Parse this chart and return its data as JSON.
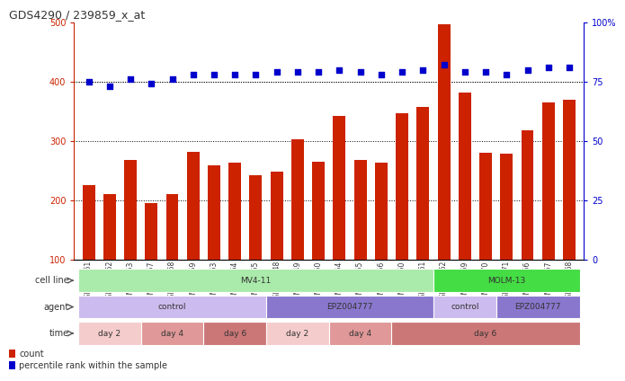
{
  "title": "GDS4290 / 239859_x_at",
  "samples": [
    "GSM739151",
    "GSM739152",
    "GSM739153",
    "GSM739157",
    "GSM739158",
    "GSM739159",
    "GSM739163",
    "GSM739164",
    "GSM739165",
    "GSM739148",
    "GSM739149",
    "GSM739150",
    "GSM739154",
    "GSM739155",
    "GSM739156",
    "GSM739160",
    "GSM739161",
    "GSM739162",
    "GSM739169",
    "GSM739170",
    "GSM739171",
    "GSM739166",
    "GSM739167",
    "GSM739168"
  ],
  "counts": [
    225,
    210,
    268,
    195,
    210,
    282,
    258,
    263,
    242,
    248,
    302,
    265,
    342,
    268,
    263,
    347,
    357,
    497,
    382,
    280,
    278,
    318,
    365,
    370
  ],
  "percentiles": [
    75,
    73,
    76,
    74,
    76,
    78,
    78,
    78,
    78,
    79,
    79,
    79,
    80,
    79,
    78,
    79,
    80,
    82,
    79,
    79,
    78,
    80,
    81,
    81
  ],
  "bar_color": "#CC2200",
  "dot_color": "#0000CC",
  "ylim_left": [
    100,
    500
  ],
  "ylim_right": [
    0,
    100
  ],
  "yticks_left": [
    100,
    200,
    300,
    400,
    500
  ],
  "yticks_right": [
    0,
    25,
    50,
    75,
    100
  ],
  "grid_values": [
    200,
    300,
    400
  ],
  "cell_line_regions": [
    {
      "label": "MV4-11",
      "start": 0,
      "end": 17,
      "color": "#AAEAAA"
    },
    {
      "label": "MOLM-13",
      "start": 17,
      "end": 24,
      "color": "#44DD44"
    }
  ],
  "agent_regions": [
    {
      "label": "control",
      "start": 0,
      "end": 9,
      "color": "#CCBBEE"
    },
    {
      "label": "EPZ004777",
      "start": 9,
      "end": 17,
      "color": "#8877CC"
    },
    {
      "label": "control",
      "start": 17,
      "end": 20,
      "color": "#CCBBEE"
    },
    {
      "label": "EPZ004777",
      "start": 20,
      "end": 24,
      "color": "#8877CC"
    }
  ],
  "time_regions": [
    {
      "label": "day 2",
      "start": 0,
      "end": 3,
      "color": "#F5CCCC"
    },
    {
      "label": "day 4",
      "start": 3,
      "end": 6,
      "color": "#E09898"
    },
    {
      "label": "day 6",
      "start": 6,
      "end": 9,
      "color": "#CC7777"
    },
    {
      "label": "day 2",
      "start": 9,
      "end": 12,
      "color": "#F5CCCC"
    },
    {
      "label": "day 4",
      "start": 12,
      "end": 15,
      "color": "#E09898"
    },
    {
      "label": "day 6",
      "start": 15,
      "end": 24,
      "color": "#CC7777"
    }
  ],
  "bg_color": "#FFFFFF"
}
